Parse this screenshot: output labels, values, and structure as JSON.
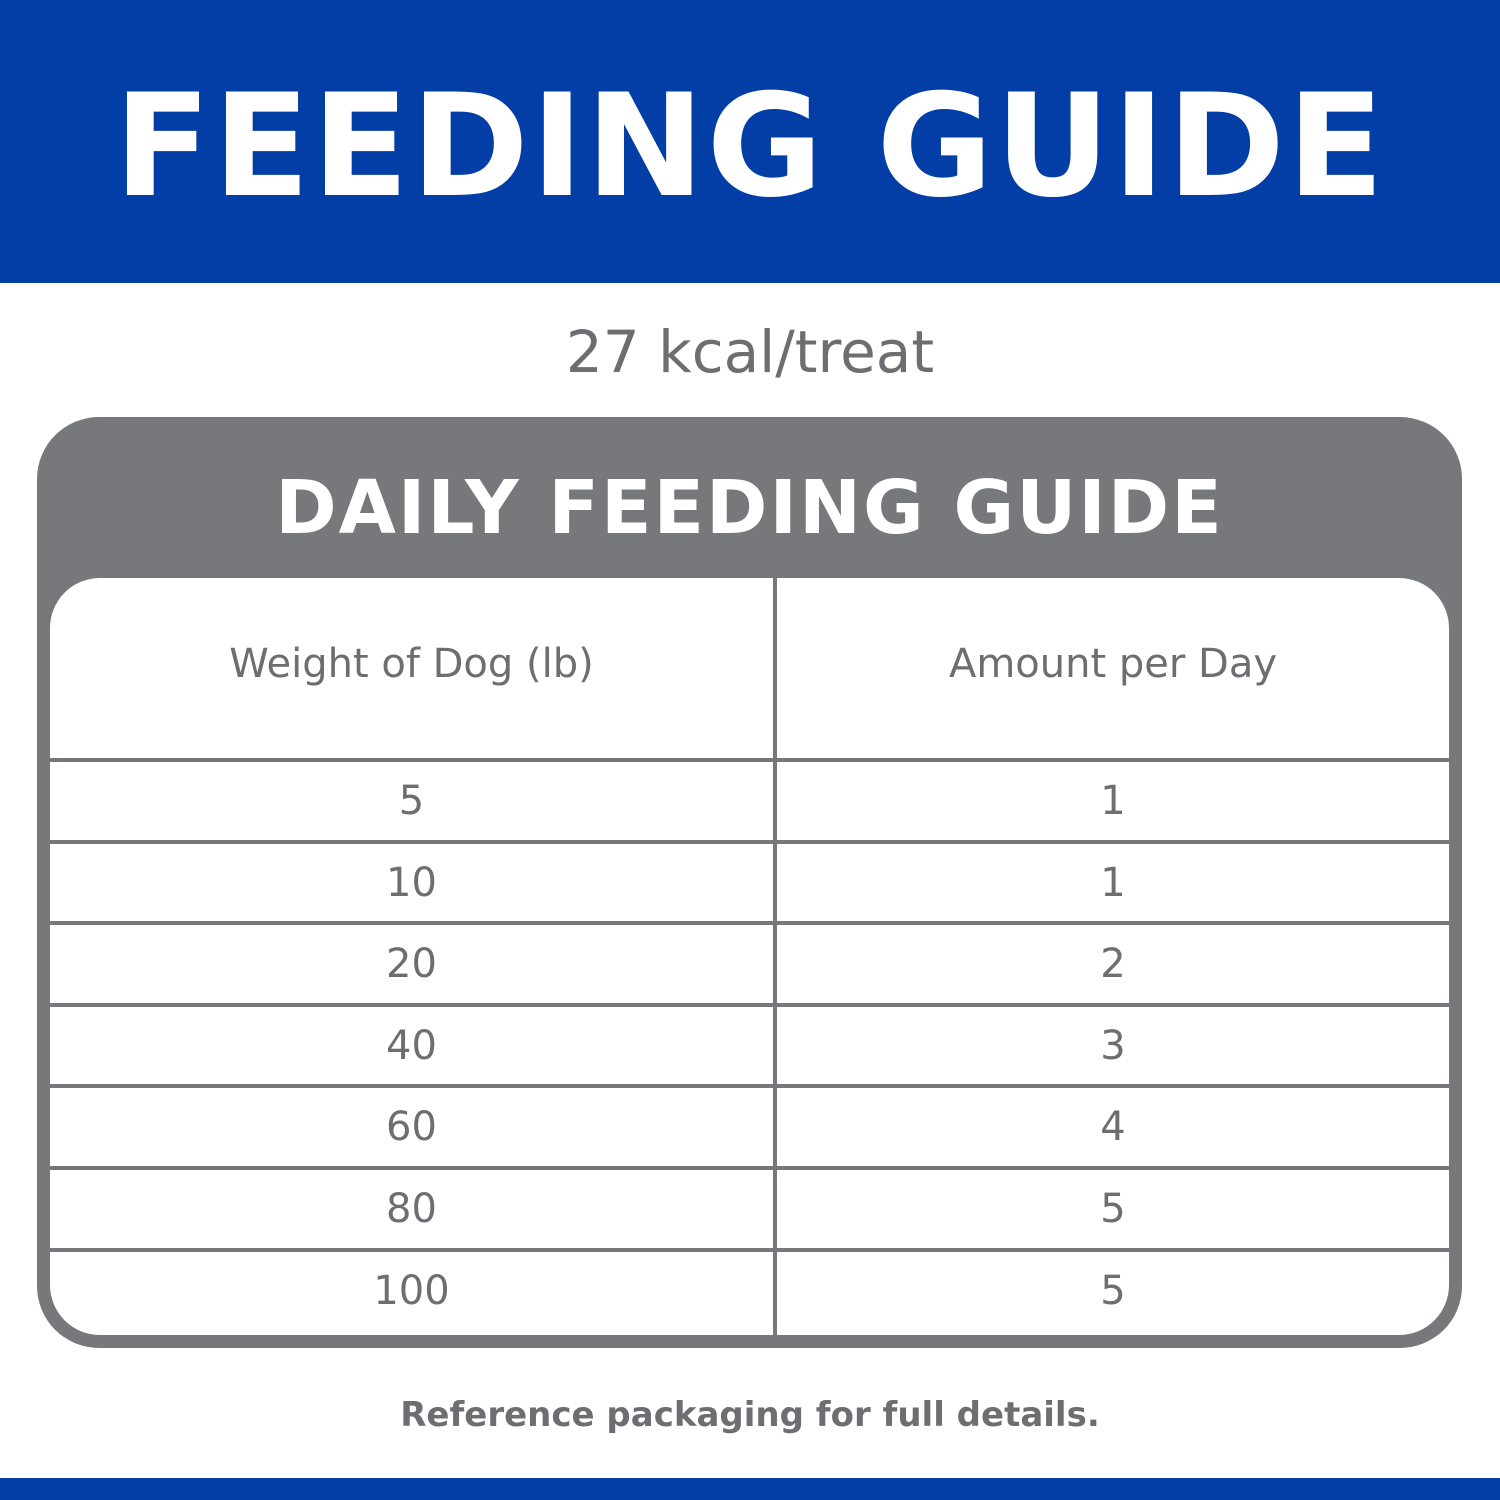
{
  "header": {
    "title": "FEEDING GUIDE"
  },
  "calories": "27 kcal/treat",
  "table": {
    "title": "DAILY FEEDING GUIDE",
    "columns": [
      "Weight of Dog (lb)",
      "Amount per Day"
    ],
    "rows": [
      [
        "5",
        "1"
      ],
      [
        "10",
        "1"
      ],
      [
        "20",
        "2"
      ],
      [
        "40",
        "3"
      ],
      [
        "60",
        "4"
      ],
      [
        "80",
        "5"
      ],
      [
        "100",
        "5"
      ]
    ]
  },
  "footer_note": "Reference packaging for full details.",
  "colors": {
    "brand_blue": "#023ea6",
    "gray": "#77787b",
    "text_gray": "#6d6e71"
  }
}
